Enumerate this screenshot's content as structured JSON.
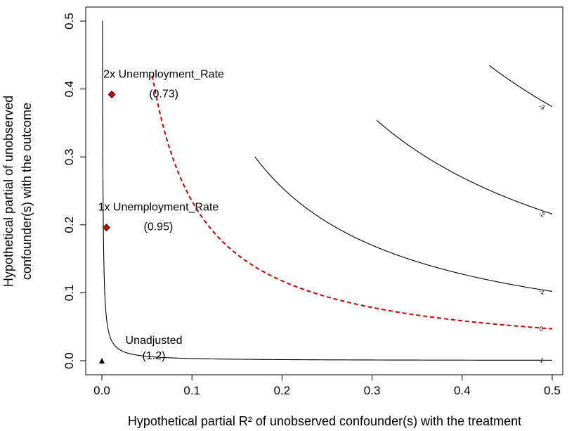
{
  "chart_data": {
    "type": "contour",
    "xlabel": "Hypothetical partial R² of unobserved confounder(s) with the treatment",
    "ylabel_line1": "Hypothetical partial  of unobserved",
    "ylabel_line2": "confounder(s) with the outcome",
    "xlim": [
      0,
      0.5
    ],
    "ylim": [
      0,
      0.5
    ],
    "x_ticks": [
      0.0,
      0.1,
      0.2,
      0.3,
      0.4,
      0.5
    ],
    "x_tick_labels": [
      "0.0",
      "0.1",
      "0.2",
      "0.3",
      "0.4",
      "0.5"
    ],
    "y_ticks": [
      0.0,
      0.1,
      0.2,
      0.3,
      0.4,
      0.5
    ],
    "y_tick_labels": [
      "0.0",
      "0.1",
      "0.2",
      "0.3",
      "0.4",
      "0.5"
    ],
    "grid": false,
    "contours": [
      {
        "level_label": "1",
        "style": "solid",
        "color": "#000000",
        "k": 0.00032,
        "x_range": [
          0.0003,
          0.5
        ]
      },
      {
        "level_label": "0",
        "style": "dashed",
        "color": "#cc0000",
        "k": 0.0235,
        "x_range": [
          0.056,
          0.5
        ],
        "threshold": true
      },
      {
        "level_label": "-1",
        "style": "solid",
        "color": "#000000",
        "k": 0.051,
        "x_range": [
          0.17,
          0.5
        ]
      },
      {
        "level_label": "-2",
        "style": "solid",
        "color": "#000000",
        "k": 0.108,
        "x_range": [
          0.305,
          0.5
        ]
      },
      {
        "level_label": "-3",
        "style": "solid",
        "color": "#000000",
        "k": 0.187,
        "x_range": [
          0.43,
          0.5
        ]
      }
    ],
    "points": [
      {
        "label": "Unadjusted",
        "value_text": "(1.2)",
        "x": 0.0,
        "y": 0.0,
        "marker": "triangle",
        "color": "#000000"
      },
      {
        "label": "1x Unemployment_Rate",
        "value_text": "(0.95)",
        "x": 0.005,
        "y": 0.196,
        "marker": "diamond",
        "color": "#cc0000"
      },
      {
        "label": "2x Unemployment_Rate",
        "value_text": "(0.73)",
        "x": 0.011,
        "y": 0.392,
        "marker": "diamond",
        "color": "#cc0000"
      }
    ]
  }
}
